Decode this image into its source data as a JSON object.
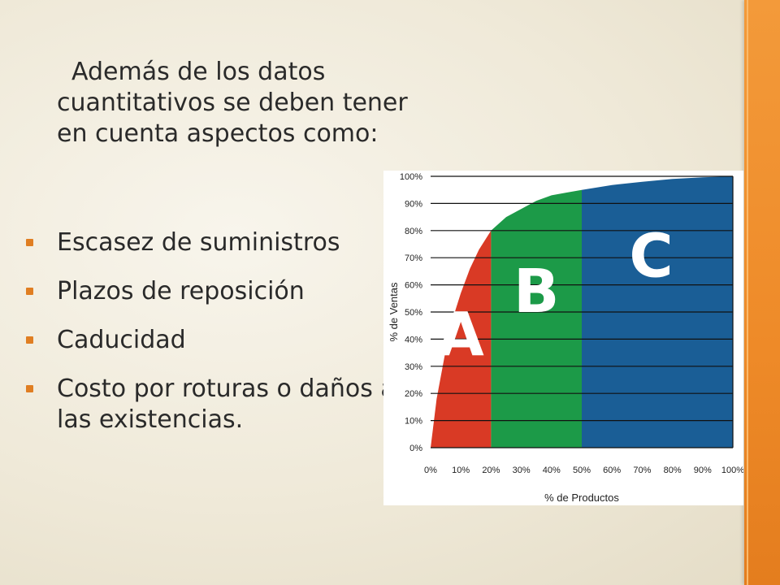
{
  "slide": {
    "intro_first": "Además de los datos",
    "intro_rest": "cuantitativos se deben tener en cuenta aspectos como:",
    "bullets": [
      "Escasez de suministros",
      "Plazos de reposición",
      "Caducidad",
      "Costo por roturas o daños a las existencias."
    ],
    "accent_color": "#e07e22",
    "sidebar_color": "#ee8a28"
  },
  "chart_data": {
    "type": "area",
    "xlabel": "% de Productos",
    "ylabel": "% de Ventas",
    "xlim": [
      0,
      100
    ],
    "ylim": [
      0,
      100
    ],
    "x_ticks": [
      "0%",
      "10%",
      "20%",
      "30%",
      "40%",
      "50%",
      "60%",
      "70%",
      "80%",
      "90%",
      "100%"
    ],
    "y_ticks": [
      "0%",
      "10%",
      "20%",
      "30%",
      "40%",
      "50%",
      "60%",
      "70%",
      "80%",
      "90%",
      "100%"
    ],
    "grid": true,
    "curve": {
      "x": [
        0,
        2,
        5,
        8,
        10,
        13,
        16,
        20,
        25,
        30,
        35,
        40,
        45,
        50,
        60,
        70,
        80,
        90,
        100
      ],
      "y": [
        0,
        18,
        36,
        50,
        57,
        66,
        73,
        80,
        85,
        88,
        91,
        93,
        94,
        95,
        96.8,
        98,
        99,
        99.6,
        100
      ]
    },
    "zones": [
      {
        "label": "A",
        "x_start": 0,
        "x_end": 20,
        "color": "#d93a25"
      },
      {
        "label": "B",
        "x_start": 20,
        "x_end": 50,
        "color": "#1c9a48"
      },
      {
        "label": "C",
        "x_start": 50,
        "x_end": 100,
        "color": "#1a5e96"
      }
    ]
  }
}
